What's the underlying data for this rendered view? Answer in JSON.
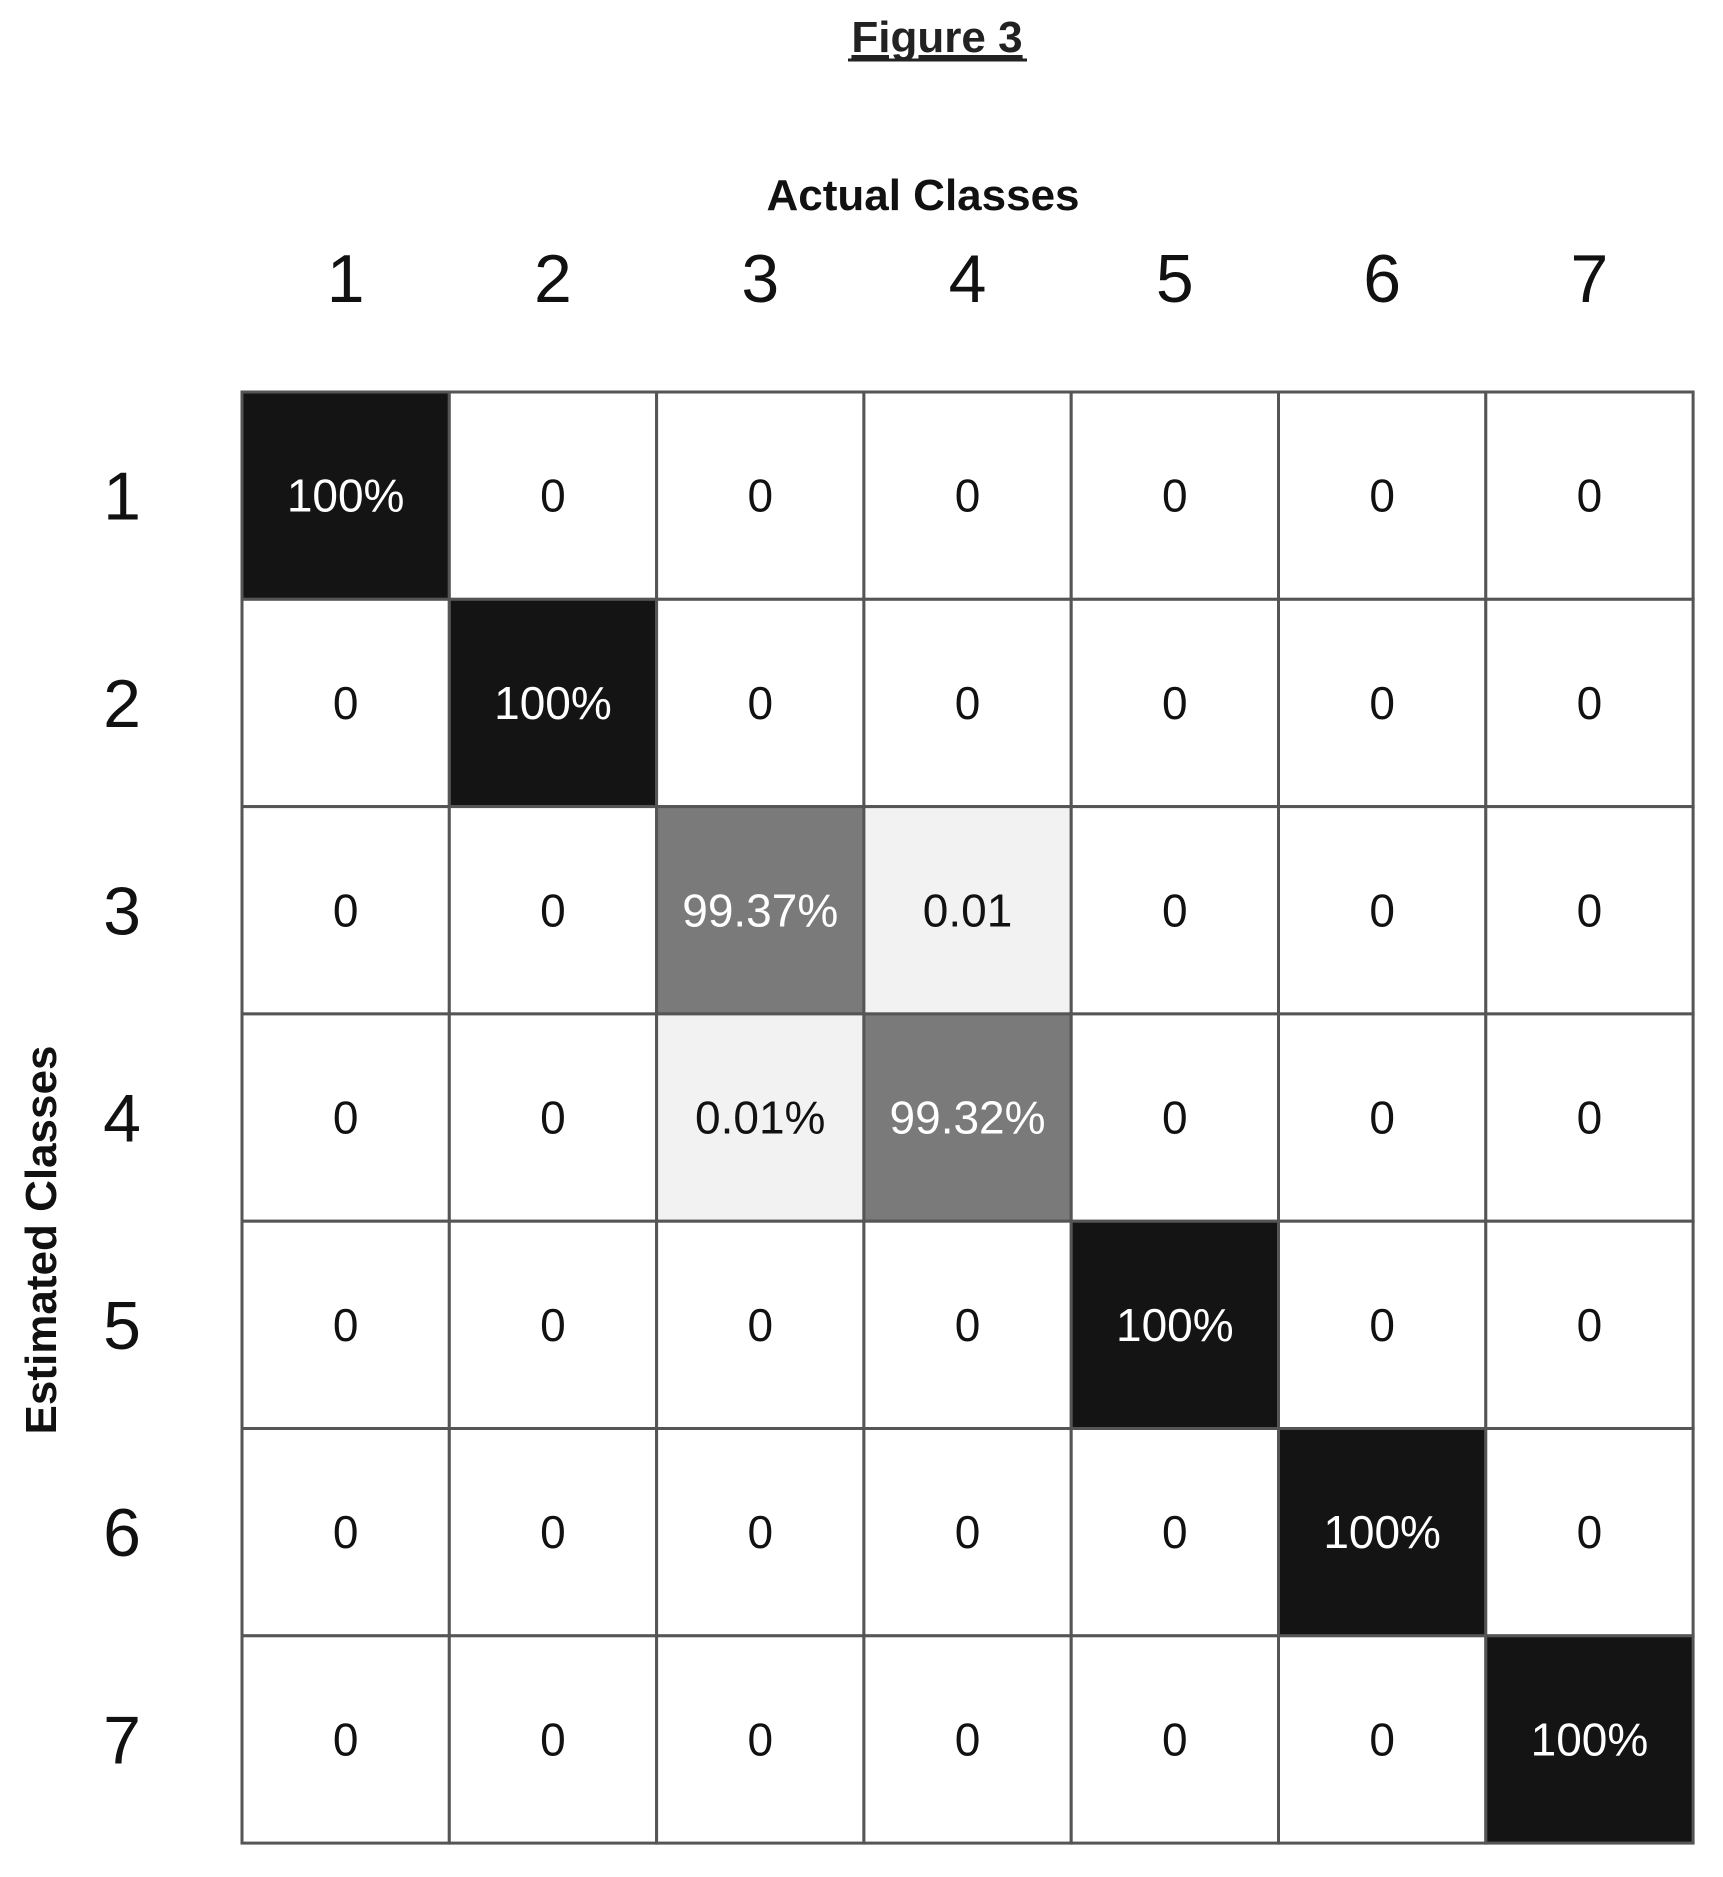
{
  "figure_label": "Figure 3",
  "chart_data": {
    "type": "heatmap",
    "title": "",
    "xlabel": "Actual Classes",
    "ylabel": "Estimated Classes",
    "x_categories": [
      "1",
      "2",
      "3",
      "4",
      "5",
      "6",
      "7"
    ],
    "y_categories": [
      "1",
      "2",
      "3",
      "4",
      "5",
      "6",
      "7"
    ],
    "cells": [
      [
        "100%",
        "0",
        "0",
        "0",
        "0",
        "0",
        "0"
      ],
      [
        "0",
        "100%",
        "0",
        "0",
        "0",
        "0",
        "0"
      ],
      [
        "0",
        "0",
        "99.37%",
        "0.01",
        "0",
        "0",
        "0"
      ],
      [
        "0",
        "0",
        "0.01%",
        "99.32%",
        "0",
        "0",
        "0"
      ],
      [
        "0",
        "0",
        "0",
        "0",
        "100%",
        "0",
        "0"
      ],
      [
        "0",
        "0",
        "0",
        "0",
        "0",
        "100%",
        "0"
      ],
      [
        "0",
        "0",
        "0",
        "0",
        "0",
        "0",
        "100%"
      ]
    ],
    "values": [
      [
        100,
        0,
        0,
        0,
        0,
        0,
        0
      ],
      [
        0,
        100,
        0,
        0,
        0,
        0,
        0
      ],
      [
        0,
        0,
        99.37,
        0.01,
        0,
        0,
        0
      ],
      [
        0,
        0,
        0.01,
        99.32,
        0,
        0,
        0
      ],
      [
        0,
        0,
        0,
        0,
        100,
        0,
        0
      ],
      [
        0,
        0,
        0,
        0,
        0,
        100,
        0
      ],
      [
        0,
        0,
        0,
        0,
        0,
        0,
        100
      ]
    ],
    "colors": {
      "full": "#141414",
      "high": "#7a7a7a",
      "low": "#f2f2f2",
      "empty": "#ffffff",
      "grid": "#555555",
      "text_dark": "#111111",
      "text_light": "#ffffff"
    }
  }
}
